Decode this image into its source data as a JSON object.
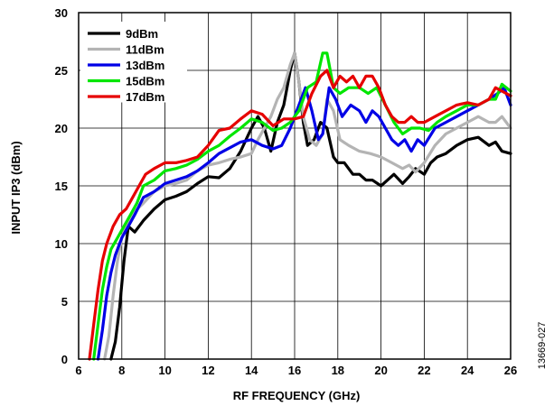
{
  "figure_id": "13669-027",
  "chart_data": {
    "type": "line",
    "xlabel": "RF FREQUENCY (GHz)",
    "ylabel": "INPUT IP3 (dBm)",
    "xlim": [
      6,
      26
    ],
    "ylim": [
      0,
      30
    ],
    "xticks": [
      6,
      8,
      10,
      12,
      14,
      16,
      18,
      20,
      22,
      24,
      26
    ],
    "yticks": [
      0,
      5,
      10,
      15,
      20,
      25,
      30
    ],
    "grid": true,
    "legend_position": "top-left",
    "series": [
      {
        "name": "9dBm",
        "color": "#000000",
        "x": [
          7.5,
          7.7,
          7.9,
          8.1,
          8.3,
          8.6,
          9.0,
          9.5,
          10.0,
          10.5,
          11.0,
          11.5,
          12.0,
          12.5,
          13.0,
          13.5,
          14.0,
          14.3,
          14.6,
          14.9,
          15.2,
          15.5,
          15.8,
          16.0,
          16.2,
          16.4,
          16.6,
          16.9,
          17.2,
          17.5,
          17.8,
          18.0,
          18.3,
          18.7,
          19.0,
          19.3,
          19.6,
          20.0,
          20.3,
          20.6,
          21.0,
          21.3,
          21.6,
          22.0,
          22.3,
          22.6,
          23.0,
          23.5,
          24.0,
          24.5,
          25.0,
          25.3,
          25.6,
          26.0
        ],
        "y": [
          0,
          1.5,
          4.5,
          8.5,
          11.5,
          11.0,
          12.0,
          13.0,
          13.8,
          14.1,
          14.5,
          15.2,
          15.8,
          15.7,
          16.5,
          18.0,
          20.0,
          21.0,
          20.0,
          18.0,
          20.5,
          22.0,
          25.0,
          26.5,
          24.0,
          20.5,
          18.5,
          19.0,
          20.5,
          20.0,
          17.5,
          17.0,
          17.0,
          16.0,
          16.0,
          15.5,
          15.5,
          15.0,
          15.5,
          16.0,
          15.2,
          15.8,
          16.5,
          16.0,
          17.0,
          17.5,
          17.8,
          18.5,
          19.0,
          19.2,
          18.5,
          18.8,
          18.0,
          17.8
        ]
      },
      {
        "name": "11dBm",
        "color": "#b4b4b4",
        "x": [
          7.2,
          7.4,
          7.6,
          7.8,
          8.0,
          8.3,
          8.6,
          9.0,
          9.5,
          10.0,
          10.5,
          11.0,
          11.5,
          12.0,
          12.5,
          13.0,
          13.5,
          14.0,
          14.3,
          14.6,
          14.9,
          15.2,
          15.5,
          15.8,
          16.0,
          16.2,
          16.4,
          16.7,
          17.0,
          17.3,
          17.5,
          17.8,
          18.1,
          18.5,
          19.0,
          19.5,
          20.0,
          20.5,
          21.0,
          21.3,
          21.6,
          22.0,
          22.5,
          23.0,
          23.5,
          24.0,
          24.5,
          25.0,
          25.3,
          25.6,
          26.0
        ],
        "y": [
          0,
          2.0,
          5.5,
          8.5,
          10.5,
          12.0,
          12.8,
          13.5,
          14.5,
          15.0,
          15.2,
          15.5,
          16.3,
          16.8,
          17.0,
          17.3,
          17.5,
          17.8,
          19.0,
          20.0,
          21.0,
          22.5,
          23.5,
          25.5,
          26.5,
          24.0,
          21.0,
          19.0,
          18.5,
          19.5,
          22.5,
          21.5,
          19.0,
          18.5,
          18.0,
          17.8,
          17.5,
          17.0,
          16.5,
          16.8,
          16.2,
          17.0,
          18.5,
          19.5,
          20.0,
          20.5,
          21.0,
          20.5,
          20.5,
          21.0,
          20.0
        ]
      },
      {
        "name": "13dBm",
        "color": "#0000e6",
        "x": [
          6.9,
          7.1,
          7.3,
          7.5,
          7.7,
          8.0,
          8.3,
          8.6,
          9.0,
          9.5,
          10.0,
          10.5,
          11.0,
          11.5,
          12.0,
          12.5,
          13.0,
          13.5,
          14.0,
          14.5,
          15.0,
          15.4,
          15.8,
          16.1,
          16.5,
          16.8,
          17.1,
          17.3,
          17.6,
          17.9,
          18.2,
          18.6,
          19.0,
          19.3,
          19.6,
          19.9,
          20.2,
          20.5,
          20.8,
          21.1,
          21.4,
          21.7,
          22.0,
          22.5,
          23.0,
          23.5,
          24.0,
          24.5,
          25.0,
          25.4,
          25.7,
          26.0
        ],
        "y": [
          0,
          2.5,
          5.5,
          7.5,
          9.0,
          10.5,
          11.5,
          12.5,
          14.0,
          14.5,
          15.2,
          15.5,
          15.8,
          16.3,
          17.0,
          17.8,
          18.3,
          18.8,
          19.0,
          18.5,
          18.2,
          18.5,
          20.0,
          21.5,
          23.5,
          21.5,
          19.0,
          19.5,
          23.5,
          22.5,
          21.0,
          22.0,
          21.5,
          20.5,
          21.5,
          21.0,
          20.0,
          19.0,
          18.5,
          19.0,
          18.0,
          19.0,
          18.5,
          20.0,
          20.5,
          21.0,
          21.5,
          22.0,
          22.5,
          23.0,
          23.5,
          22.0
        ]
      },
      {
        "name": "15dBm",
        "color": "#00e600",
        "x": [
          6.7,
          6.9,
          7.1,
          7.3,
          7.5,
          7.8,
          8.1,
          8.4,
          8.7,
          9.0,
          9.5,
          10.0,
          10.5,
          11.0,
          11.5,
          12.0,
          12.5,
          13.0,
          13.5,
          14.0,
          14.5,
          15.0,
          15.4,
          15.8,
          16.2,
          16.6,
          17.0,
          17.3,
          17.5,
          17.8,
          18.1,
          18.5,
          19.0,
          19.4,
          19.8,
          20.2,
          20.6,
          21.0,
          21.4,
          21.8,
          22.2,
          22.6,
          23.0,
          23.5,
          24.0,
          24.5,
          25.0,
          25.3,
          25.6,
          26.0
        ],
        "y": [
          0,
          3.0,
          6.0,
          8.0,
          9.5,
          10.5,
          11.5,
          12.5,
          13.5,
          15.0,
          15.5,
          16.3,
          16.5,
          16.8,
          17.3,
          18.0,
          18.5,
          19.3,
          20.0,
          20.8,
          20.5,
          19.8,
          20.0,
          20.5,
          21.5,
          23.5,
          24.0,
          26.5,
          26.5,
          23.5,
          23.0,
          23.5,
          23.5,
          23.0,
          23.5,
          22.0,
          20.5,
          19.5,
          20.0,
          20.0,
          19.8,
          20.5,
          21.0,
          21.5,
          22.0,
          22.0,
          22.5,
          22.5,
          23.8,
          23.2
        ]
      },
      {
        "name": "17dBm",
        "color": "#e60000",
        "x": [
          6.5,
          6.7,
          6.9,
          7.1,
          7.3,
          7.6,
          7.9,
          8.2,
          8.5,
          8.8,
          9.1,
          9.5,
          10.0,
          10.5,
          11.0,
          11.5,
          12.0,
          12.5,
          13.0,
          13.5,
          14.0,
          14.5,
          15.0,
          15.5,
          16.0,
          16.4,
          16.8,
          17.2,
          17.5,
          17.8,
          18.1,
          18.4,
          18.7,
          19.0,
          19.3,
          19.6,
          19.9,
          20.2,
          20.5,
          20.8,
          21.1,
          21.4,
          21.7,
          22.0,
          22.5,
          23.0,
          23.5,
          24.0,
          24.5,
          25.0,
          25.3,
          25.6,
          26.0
        ],
        "y": [
          0,
          3.0,
          6.0,
          8.5,
          10.0,
          11.5,
          12.5,
          13.0,
          14.0,
          15.0,
          16.0,
          16.5,
          17.0,
          17.0,
          17.2,
          17.5,
          18.5,
          19.8,
          20.0,
          20.8,
          21.5,
          21.2,
          20.2,
          20.8,
          20.8,
          21.0,
          23.0,
          24.5,
          25.0,
          23.5,
          24.5,
          24.0,
          24.5,
          23.5,
          24.5,
          24.5,
          23.5,
          22.0,
          21.0,
          20.5,
          20.5,
          21.0,
          20.5,
          20.5,
          21.0,
          21.5,
          22.0,
          22.2,
          22.0,
          22.5,
          23.5,
          23.2,
          22.8
        ]
      }
    ]
  }
}
